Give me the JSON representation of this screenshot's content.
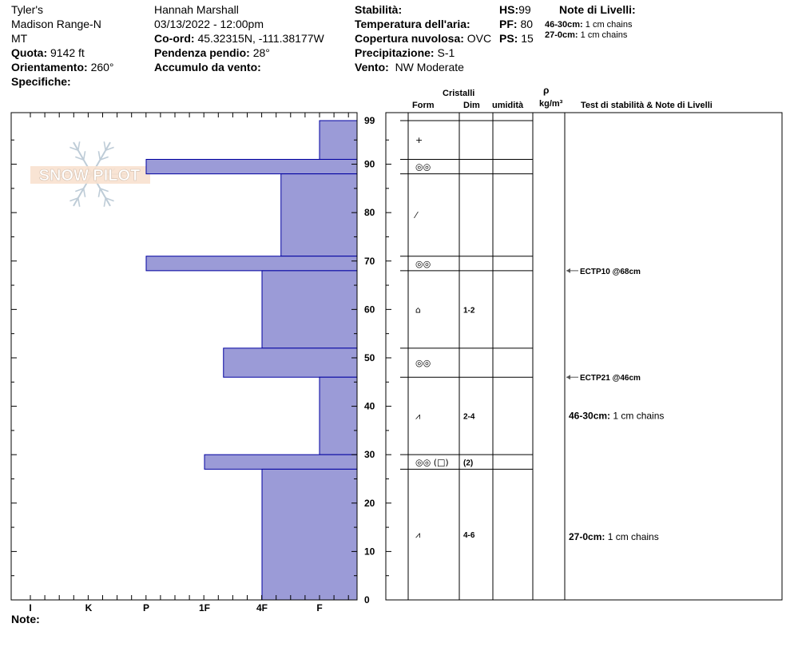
{
  "header": {
    "location_name": "Tyler's",
    "range": "Madison Range-N",
    "state": "MT",
    "elevation_label": "Quota:",
    "elevation_value": "9142 ft",
    "aspect_label": "Orientamento:",
    "aspect_value": "260°",
    "specifics_label": "Specifiche:",
    "observer": "Hannah Marshall",
    "datetime": "03/13/2022 - 12:00pm",
    "coord_label": "Co-ord:",
    "coord_value": "45.32315N, -111.38177W",
    "slope_label": "Pendenza pendio:",
    "slope_value": "28°",
    "wind_loading_label": "Accumulo da vento:",
    "stability_label": "Stabilità:",
    "air_temp_label": "Temperatura dell'aria:",
    "cloud_label": "Copertura nuvolosa:",
    "cloud_value": "OVC",
    "precip_label": "Precipitazione:",
    "precip_value": "S-1",
    "wind_label": "Vento:",
    "wind_value": "NW Moderate",
    "hs_label": "HS:",
    "hs_value": "99",
    "pf_label": "PF:",
    "pf_value": "80",
    "ps_label": "PS:",
    "ps_value": "15",
    "layer_notes_title": "Note di Livelli:",
    "layer_notes": [
      {
        "label": "46-30cm:",
        "text": "1 cm chains"
      },
      {
        "label": "27-0cm:",
        "text": "1 cm chains"
      }
    ]
  },
  "watermark": {
    "text": "SNOW PILOT"
  },
  "table_headers": {
    "crystals": "Cristalli",
    "form": "Form",
    "size": "Dim",
    "moisture": "umidità",
    "rho": "ρ",
    "density_unit": "kg/m³",
    "tests_notes": "Test di stabilità & Note di Livelli"
  },
  "footer": {
    "note_label": "Note:"
  },
  "colors": {
    "hardness_fill": "#9b9bd7",
    "hardness_stroke": "#0000a0"
  },
  "chart_data": {
    "type": "bar",
    "orientation": "horizontal",
    "ylabel": "",
    "ylim": [
      0,
      99
    ],
    "y_ticks": [
      0,
      10,
      20,
      30,
      40,
      50,
      60,
      70,
      80,
      90,
      99
    ],
    "hardness_scale": [
      "I",
      "K",
      "P",
      "1F",
      "4F",
      "F"
    ],
    "layers": [
      {
        "top": 99,
        "bottom": 91,
        "hardness": "F"
      },
      {
        "top": 91,
        "bottom": 88,
        "hardness": "P"
      },
      {
        "top": 88,
        "bottom": 71,
        "hardness": "4F+"
      },
      {
        "top": 71,
        "bottom": 68,
        "hardness": "P"
      },
      {
        "top": 68,
        "bottom": 52,
        "hardness": "4F"
      },
      {
        "top": 52,
        "bottom": 46,
        "hardness": "1F+"
      },
      {
        "top": 46,
        "bottom": 30,
        "hardness": "F"
      },
      {
        "top": 30,
        "bottom": 27,
        "hardness": "1F"
      },
      {
        "top": 27,
        "bottom": 0,
        "hardness": "4F"
      }
    ],
    "layer_hardness_index": [
      5,
      2,
      4.33,
      2,
      4,
      3.33,
      5,
      3,
      4
    ],
    "crystals": [
      {
        "top": 99,
        "bottom": 91,
        "form": "+",
        "size": ""
      },
      {
        "top": 91,
        "bottom": 88,
        "form": "◎◎",
        "size": ""
      },
      {
        "top": 88,
        "bottom": 71,
        "form": "⁄",
        "size": ""
      },
      {
        "top": 71,
        "bottom": 68,
        "form": "◎◎",
        "size": ""
      },
      {
        "top": 68,
        "bottom": 52,
        "form": "⌂",
        "size": "1-2"
      },
      {
        "top": 52,
        "bottom": 46,
        "form": "◎◎",
        "size": ""
      },
      {
        "top": 46,
        "bottom": 30,
        "form": "⩘",
        "size": "2-4"
      },
      {
        "top": 30,
        "bottom": 27,
        "form": "◎◎ (□)",
        "size": "(2)"
      },
      {
        "top": 27,
        "bottom": 0,
        "form": "⩘",
        "size": "4-6"
      }
    ],
    "stability_tests": [
      {
        "depth": 68,
        "label": "ECTP10 @68cm"
      },
      {
        "depth": 46,
        "label": "ECTP21 @46cm"
      }
    ],
    "layer_notes_in_chart": [
      {
        "depth": 38,
        "label": "46-30cm:",
        "text": "1 cm chains"
      },
      {
        "depth": 13,
        "label": "27-0cm:",
        "text": "1 cm chains"
      }
    ]
  }
}
